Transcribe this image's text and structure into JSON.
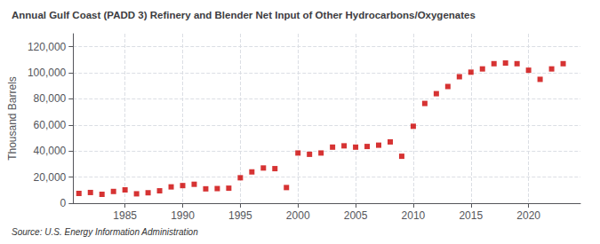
{
  "chart_data": {
    "type": "scatter",
    "title": "Annual Gulf Coast (PADD 3) Refinery and Blender Net Input of Other Hydrocarbons/Oxygenates",
    "ylabel": "Thousand Barrels",
    "annotations": [
      "Source: U.S. Energy Information Administration"
    ],
    "x": [
      1981,
      1982,
      1983,
      1984,
      1985,
      1986,
      1987,
      1988,
      1989,
      1990,
      1991,
      1992,
      1993,
      1994,
      1995,
      1996,
      1997,
      1998,
      1999,
      2000,
      2001,
      2002,
      2003,
      2004,
      2005,
      2006,
      2007,
      2008,
      2009,
      2010,
      2011,
      2012,
      2013,
      2014,
      2015,
      2016,
      2017,
      2018,
      2019,
      2020,
      2021,
      2022,
      2023
    ],
    "values": [
      7500,
      8200,
      6800,
      9000,
      10200,
      7200,
      8000,
      9500,
      12500,
      13500,
      14500,
      11000,
      11200,
      11500,
      19500,
      24000,
      27000,
      26500,
      12000,
      38500,
      37500,
      38500,
      43000,
      44000,
      43000,
      43500,
      44500,
      47000,
      36000,
      59000,
      76500,
      84000,
      89500,
      97000,
      100500,
      103000,
      107000,
      107500,
      107000,
      102000,
      95000,
      103000,
      107000
    ],
    "color": "#cc0000",
    "marker": "square",
    "xlim": [
      1980.5,
      2024.5
    ],
    "xticks": [
      1985,
      1990,
      1995,
      2000,
      2005,
      2010,
      2015,
      2020
    ],
    "ylim": [
      0,
      130000
    ],
    "yticks": [
      0,
      {
        "value": 20000,
        "label": "20,000"
      },
      {
        "value": 40000,
        "label": "40,000"
      },
      {
        "value": 60000,
        "label": "60,000"
      },
      {
        "value": 80000,
        "label": "80,000"
      },
      {
        "value": 100000,
        "label": "100,000"
      },
      {
        "value": 120000,
        "label": "120,000"
      }
    ],
    "grid": true
  }
}
